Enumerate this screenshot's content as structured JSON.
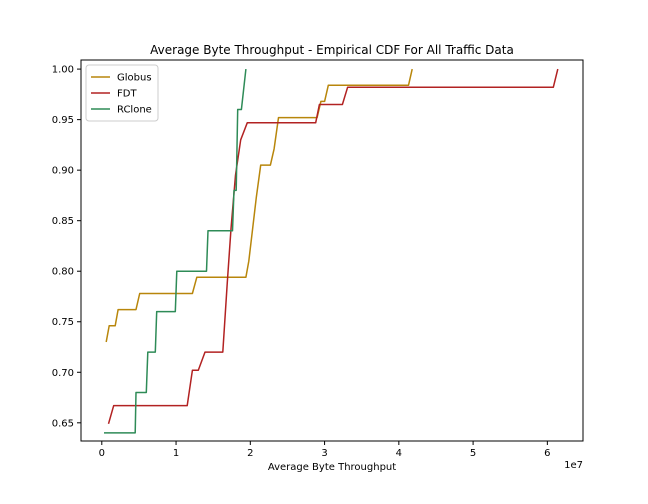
{
  "chart_data": {
    "type": "line",
    "title": "Average Byte Throughput - Empirical CDF For All Traffic Data",
    "xlabel": "Average Byte Throughput",
    "ylabel": "",
    "x_offset_label": "1e7",
    "xlim": [
      -2800000,
      64800000
    ],
    "ylim": [
      0.632,
      1.009
    ],
    "x_ticks": [
      0,
      10000000,
      20000000,
      30000000,
      40000000,
      50000000,
      60000000
    ],
    "x_tick_labels": [
      "0",
      "1",
      "2",
      "3",
      "4",
      "5",
      "6"
    ],
    "y_ticks": [
      0.65,
      0.7,
      0.75,
      0.8,
      0.85,
      0.9,
      0.95,
      1.0
    ],
    "y_tick_labels": [
      "0.65",
      "0.70",
      "0.75",
      "0.80",
      "0.85",
      "0.90",
      "0.95",
      "1.00"
    ],
    "grid": false,
    "legend_position": "top-left",
    "series": [
      {
        "name": "Globus",
        "color": "#b8860b",
        "points": [
          [
            600000,
            0.73
          ],
          [
            1000000,
            0.746
          ],
          [
            1800000,
            0.746
          ],
          [
            2200000,
            0.762
          ],
          [
            4600000,
            0.762
          ],
          [
            5100000,
            0.778
          ],
          [
            12200000,
            0.778
          ],
          [
            12800000,
            0.794
          ],
          [
            19400000,
            0.794
          ],
          [
            19800000,
            0.81
          ],
          [
            20300000,
            0.841
          ],
          [
            20800000,
            0.873
          ],
          [
            21400000,
            0.905
          ],
          [
            22700000,
            0.905
          ],
          [
            23200000,
            0.921
          ],
          [
            23800000,
            0.952
          ],
          [
            29000000,
            0.952
          ],
          [
            29500000,
            0.968
          ],
          [
            30000000,
            0.968
          ],
          [
            30500000,
            0.984
          ],
          [
            41300000,
            0.984
          ],
          [
            41800000,
            1.0
          ]
        ]
      },
      {
        "name": "FDT",
        "color": "#b22222",
        "points": [
          [
            900000,
            0.649
          ],
          [
            1600000,
            0.667
          ],
          [
            11500000,
            0.667
          ],
          [
            12200000,
            0.702
          ],
          [
            13000000,
            0.702
          ],
          [
            13900000,
            0.72
          ],
          [
            16300000,
            0.72
          ],
          [
            16900000,
            0.789
          ],
          [
            17400000,
            0.842
          ],
          [
            18000000,
            0.895
          ],
          [
            18700000,
            0.93
          ],
          [
            19600000,
            0.947
          ],
          [
            28800000,
            0.947
          ],
          [
            29300000,
            0.965
          ],
          [
            32400000,
            0.965
          ],
          [
            33100000,
            0.982
          ],
          [
            60800000,
            0.982
          ],
          [
            61400000,
            1.0
          ]
        ]
      },
      {
        "name": "RClone",
        "color": "#2e8b57",
        "points": [
          [
            300000,
            0.64
          ],
          [
            4500000,
            0.64
          ],
          [
            4600000,
            0.68
          ],
          [
            6000000,
            0.68
          ],
          [
            6200000,
            0.72
          ],
          [
            7200000,
            0.72
          ],
          [
            7400000,
            0.76
          ],
          [
            9900000,
            0.76
          ],
          [
            10100000,
            0.8
          ],
          [
            14100000,
            0.8
          ],
          [
            14300000,
            0.84
          ],
          [
            17600000,
            0.84
          ],
          [
            17800000,
            0.88
          ],
          [
            18100000,
            0.88
          ],
          [
            18300000,
            0.96
          ],
          [
            18800000,
            0.96
          ],
          [
            19400000,
            1.0
          ]
        ]
      }
    ]
  }
}
